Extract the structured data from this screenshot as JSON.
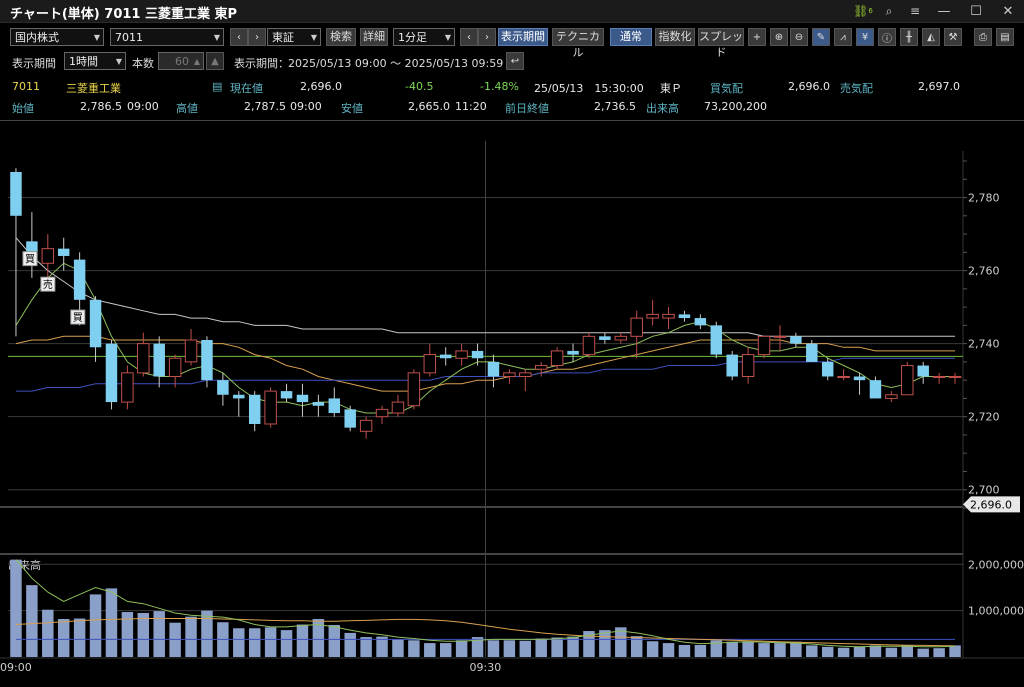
{
  "window": {
    "title": "チャート(単体) 7011 三菱重工業 東P",
    "link_badge": "6"
  },
  "toolbar": {
    "market_select": "国内株式",
    "code_input": "7011",
    "exchange_select": "東証",
    "search_label": "検索",
    "detail_label": "詳細",
    "interval_select": "1分足",
    "period_label": "表示期間",
    "technical_label": "テクニカル",
    "normal_label": "通常",
    "index_label": "指数化",
    "spread_label": "スプレッド"
  },
  "row2": {
    "period_caption": "表示期間",
    "period_select": "1時間",
    "count_caption": "本数",
    "count_value": "60",
    "range_caption": "表示期間：",
    "range_text": "2025/05/13 09:00 ～ 2025/05/13 09:59"
  },
  "quote": {
    "code": "7011",
    "name": "三菱重工業",
    "current_label": "現在値",
    "current_value": "2,696.0",
    "change": "-40.5",
    "change_pct": "-1.48%",
    "datetime": "25/05/13　15:30:00",
    "market": "東Ｐ",
    "bid_label": "買気配",
    "bid_value": "2,696.0",
    "ask_label": "売気配",
    "ask_value": "2,697.0",
    "open_label": "始値",
    "open_value": "2,786.5",
    "open_time": "09:00",
    "high_label": "高値",
    "high_value": "2,787.5",
    "high_time": "09:00",
    "low_label": "安値",
    "low_value": "2,665.0",
    "low_time": "11:20",
    "prev_close_label": "前日終値",
    "prev_close_value": "2,736.5",
    "volume_label": "出来高",
    "volume_value": "73,200,200"
  },
  "colors": {
    "up_candle": "#c0504d",
    "down_candle": "#7fd0f0",
    "ma_short": "#8fbf5a",
    "ma_mid": "#d9a050",
    "ma_long": "#c8c8c8",
    "vwap": "#4050c0",
    "prev_close_line": "#6fbf40"
  },
  "chart_data": {
    "type": "candlestick",
    "price_ylim": [
      2695,
      2790
    ],
    "price_ticks": [
      "2,780",
      "2,760",
      "2,740",
      "2,720",
      "2,700"
    ],
    "current_price_tag": "2,696.0",
    "prev_close": 2736.5,
    "volume_label": "出来高",
    "volume_ylim": [
      0,
      2200000
    ],
    "volume_ticks": [
      "2,000,000",
      "1,000,000"
    ],
    "x_ticks": [
      "09:00",
      "09:30"
    ],
    "signals": [
      "買",
      "売",
      "買"
    ],
    "candles": [
      {
        "o": 2787,
        "h": 2788,
        "l": 2742,
        "c": 2775
      },
      {
        "o": 2768,
        "h": 2776,
        "l": 2758,
        "c": 2762
      },
      {
        "o": 2762,
        "h": 2770,
        "l": 2757,
        "c": 2766
      },
      {
        "o": 2766,
        "h": 2769,
        "l": 2760,
        "c": 2764
      },
      {
        "o": 2763,
        "h": 2765,
        "l": 2745,
        "c": 2752
      },
      {
        "o": 2752,
        "h": 2753,
        "l": 2735,
        "c": 2739
      },
      {
        "o": 2740,
        "h": 2741,
        "l": 2722,
        "c": 2724
      },
      {
        "o": 2724,
        "h": 2734,
        "l": 2722,
        "c": 2732
      },
      {
        "o": 2732,
        "h": 2743,
        "l": 2731,
        "c": 2740
      },
      {
        "o": 2740,
        "h": 2742,
        "l": 2728,
        "c": 2731
      },
      {
        "o": 2731,
        "h": 2737,
        "l": 2728,
        "c": 2736
      },
      {
        "o": 2735,
        "h": 2744,
        "l": 2734,
        "c": 2741
      },
      {
        "o": 2741,
        "h": 2742,
        "l": 2728,
        "c": 2730
      },
      {
        "o": 2730,
        "h": 2732,
        "l": 2723,
        "c": 2726
      },
      {
        "o": 2726,
        "h": 2727,
        "l": 2720,
        "c": 2725
      },
      {
        "o": 2726,
        "h": 2727,
        "l": 2716,
        "c": 2718
      },
      {
        "o": 2718,
        "h": 2728,
        "l": 2717,
        "c": 2727
      },
      {
        "o": 2727,
        "h": 2729,
        "l": 2724,
        "c": 2725
      },
      {
        "o": 2726,
        "h": 2729,
        "l": 2720,
        "c": 2724
      },
      {
        "o": 2724,
        "h": 2726,
        "l": 2720,
        "c": 2723
      },
      {
        "o": 2725,
        "h": 2728,
        "l": 2720,
        "c": 2721
      },
      {
        "o": 2722,
        "h": 2723,
        "l": 2716,
        "c": 2717
      },
      {
        "o": 2716,
        "h": 2720,
        "l": 2714,
        "c": 2719
      },
      {
        "o": 2720,
        "h": 2723,
        "l": 2718,
        "c": 2722
      },
      {
        "o": 2721,
        "h": 2726,
        "l": 2720,
        "c": 2724
      },
      {
        "o": 2723,
        "h": 2733,
        "l": 2722,
        "c": 2732
      },
      {
        "o": 2732,
        "h": 2740,
        "l": 2731,
        "c": 2737
      },
      {
        "o": 2737,
        "h": 2739,
        "l": 2734,
        "c": 2736
      },
      {
        "o": 2736,
        "h": 2740,
        "l": 2734,
        "c": 2738
      },
      {
        "o": 2738,
        "h": 2740,
        "l": 2734,
        "c": 2736
      },
      {
        "o": 2735,
        "h": 2737,
        "l": 2728,
        "c": 2731
      },
      {
        "o": 2731,
        "h": 2733,
        "l": 2729,
        "c": 2732
      },
      {
        "o": 2731,
        "h": 2733,
        "l": 2727,
        "c": 2732
      },
      {
        "o": 2733,
        "h": 2735,
        "l": 2731,
        "c": 2734
      },
      {
        "o": 2734,
        "h": 2739,
        "l": 2733,
        "c": 2738
      },
      {
        "o": 2738,
        "h": 2740,
        "l": 2735,
        "c": 2737
      },
      {
        "o": 2737,
        "h": 2743,
        "l": 2736,
        "c": 2742
      },
      {
        "o": 2742,
        "h": 2743,
        "l": 2740,
        "c": 2741
      },
      {
        "o": 2741,
        "h": 2743,
        "l": 2740,
        "c": 2742
      },
      {
        "o": 2742,
        "h": 2749,
        "l": 2736,
        "c": 2747
      },
      {
        "o": 2747,
        "h": 2752,
        "l": 2745,
        "c": 2748
      },
      {
        "o": 2747,
        "h": 2750,
        "l": 2744,
        "c": 2748
      },
      {
        "o": 2748,
        "h": 2749,
        "l": 2746,
        "c": 2747
      },
      {
        "o": 2747,
        "h": 2748,
        "l": 2744,
        "c": 2745
      },
      {
        "o": 2745,
        "h": 2746,
        "l": 2736,
        "c": 2737
      },
      {
        "o": 2737,
        "h": 2738,
        "l": 2730,
        "c": 2731
      },
      {
        "o": 2731,
        "h": 2739,
        "l": 2729,
        "c": 2737
      },
      {
        "o": 2737,
        "h": 2742,
        "l": 2736,
        "c": 2742
      },
      {
        "o": 2742,
        "h": 2745,
        "l": 2738,
        "c": 2742
      },
      {
        "o": 2742,
        "h": 2743,
        "l": 2739,
        "c": 2740
      },
      {
        "o": 2740,
        "h": 2741,
        "l": 2735,
        "c": 2735
      },
      {
        "o": 2735,
        "h": 2736,
        "l": 2730,
        "c": 2731
      },
      {
        "o": 2731,
        "h": 2733,
        "l": 2730,
        "c": 2731
      },
      {
        "o": 2731,
        "h": 2732,
        "l": 2726,
        "c": 2730
      },
      {
        "o": 2730,
        "h": 2731,
        "l": 2725,
        "c": 2725
      },
      {
        "o": 2725,
        "h": 2727,
        "l": 2724,
        "c": 2726
      },
      {
        "o": 2726,
        "h": 2735,
        "l": 2726,
        "c": 2734
      },
      {
        "o": 2734,
        "h": 2735,
        "l": 2729,
        "c": 2731
      },
      {
        "o": 2731,
        "h": 2732,
        "l": 2729,
        "c": 2731
      },
      {
        "o": 2731,
        "h": 2732,
        "l": 2729,
        "c": 2731
      }
    ],
    "volumes": [
      2100000,
      1550000,
      1020000,
      820000,
      830000,
      1350000,
      1480000,
      970000,
      950000,
      990000,
      740000,
      870000,
      1000000,
      750000,
      620000,
      620000,
      640000,
      580000,
      700000,
      820000,
      690000,
      520000,
      430000,
      440000,
      380000,
      360000,
      300000,
      300000,
      360000,
      430000,
      360000,
      360000,
      350000,
      400000,
      420000,
      440000,
      560000,
      580000,
      640000,
      450000,
      340000,
      300000,
      260000,
      260000,
      360000,
      330000,
      340000,
      300000,
      300000,
      330000,
      250000,
      220000,
      200000,
      220000,
      250000,
      200000,
      250000,
      180000,
      190000,
      250000
    ],
    "ma_short": [
      2745,
      2752,
      2758,
      2762,
      2760,
      2752,
      2742,
      2735,
      2732,
      2731,
      2731,
      2733,
      2734,
      2732,
      2728,
      2725,
      2724,
      2724,
      2723,
      2724,
      2724,
      2722,
      2721,
      2721,
      2721,
      2723,
      2727,
      2730,
      2733,
      2735,
      2735,
      2734,
      2733,
      2733,
      2734,
      2735,
      2737,
      2738,
      2739,
      2740,
      2742,
      2743,
      2745,
      2746,
      2744,
      2741,
      2739,
      2738,
      2738,
      2739,
      2739,
      2736,
      2734,
      2732,
      2729,
      2728,
      2729,
      2731,
      2731,
      2731
    ],
    "ma_mid": [
      2740,
      2741,
      2741,
      2742,
      2742,
      2742,
      2741,
      2741,
      2741,
      2741,
      2741,
      2741,
      2740,
      2740,
      2739,
      2737,
      2736,
      2734,
      2733,
      2731,
      2730,
      2729,
      2728,
      2727,
      2727,
      2727,
      2728,
      2729,
      2729,
      2730,
      2730,
      2731,
      2731,
      2732,
      2733,
      2733,
      2734,
      2735,
      2736,
      2737,
      2738,
      2739,
      2740,
      2741,
      2741,
      2741,
      2741,
      2741,
      2741,
      2740,
      2740,
      2740,
      2739,
      2739,
      2738,
      2738,
      2738,
      2738,
      2738,
      2738
    ],
    "ma_long": [
      2769,
      2764,
      2760,
      2757,
      2754,
      2752,
      2751,
      2750,
      2749,
      2748,
      2748,
      2747,
      2747,
      2746,
      2746,
      2745,
      2745,
      2745,
      2744,
      2744,
      2744,
      2744,
      2744,
      2744,
      2743,
      2743,
      2743,
      2743,
      2743,
      2743,
      2743,
      2743,
      2743,
      2743,
      2743,
      2743,
      2743,
      2743,
      2743,
      2743,
      2743,
      2743,
      2743,
      2743,
      2743,
      2743,
      2743,
      2742,
      2742,
      2742,
      2742,
      2742,
      2742,
      2742,
      2742,
      2742,
      2742,
      2742,
      2742,
      2742
    ],
    "vwap": [
      2727,
      2727,
      2728,
      2728,
      2728,
      2729,
      2729,
      2729,
      2729,
      2729,
      2729,
      2729,
      2730,
      2730,
      2730,
      2730,
      2730,
      2730,
      2730,
      2730,
      2730,
      2730,
      2730,
      2730,
      2730,
      2730,
      2730,
      2731,
      2731,
      2731,
      2731,
      2731,
      2731,
      2732,
      2732,
      2732,
      2732,
      2733,
      2733,
      2733,
      2733,
      2734,
      2734,
      2734,
      2734,
      2735,
      2735,
      2735,
      2735,
      2735,
      2735,
      2735,
      2736,
      2736,
      2736,
      2736,
      2736,
      2736,
      2736,
      2736
    ],
    "vol_ma_short": [
      2100000,
      1700000,
      1400000,
      1200000,
      1350000,
      1500000,
      1400000,
      1200000,
      1150000,
      1050000,
      950000,
      900000,
      880000,
      860000,
      800000,
      700000,
      650000,
      650000,
      680000,
      700000,
      650000,
      580000,
      520000,
      480000,
      430000,
      400000,
      360000,
      340000,
      340000,
      360000,
      380000,
      380000,
      380000,
      380000,
      390000,
      420000,
      470000,
      520000,
      560000,
      520000,
      460000,
      380000,
      320000,
      290000,
      300000,
      320000,
      330000,
      320000,
      310000,
      300000,
      280000,
      250000,
      230000,
      220000,
      230000,
      230000,
      230000,
      220000,
      220000,
      230000
    ],
    "vol_ma_mid": [
      700000,
      720000,
      740000,
      760000,
      780000,
      800000,
      810000,
      820000,
      830000,
      830000,
      830000,
      830000,
      830000,
      820000,
      810000,
      800000,
      790000,
      780000,
      780000,
      770000,
      770000,
      780000,
      790000,
      800000,
      810000,
      810000,
      800000,
      780000,
      750000,
      700000,
      650000,
      600000,
      560000,
      520000,
      490000,
      470000,
      450000,
      440000,
      430000,
      420000,
      410000,
      400000,
      390000,
      380000,
      370000,
      360000,
      350000,
      340000,
      330000,
      320000,
      310000,
      300000,
      290000,
      280000,
      270000,
      260000,
      255000,
      250000,
      245000,
      240000
    ],
    "vol_avg": [
      380000,
      380000,
      380000,
      380000,
      380000,
      380000,
      380000,
      380000,
      380000,
      380000,
      380000,
      380000,
      380000,
      380000,
      380000,
      380000,
      380000,
      380000,
      380000,
      380000,
      380000,
      380000,
      380000,
      380000,
      380000,
      380000,
      380000,
      380000,
      380000,
      380000,
      380000,
      380000,
      380000,
      380000,
      380000,
      380000,
      380000,
      380000,
      380000,
      380000,
      380000,
      380000,
      380000,
      380000,
      380000,
      380000,
      380000,
      380000,
      380000,
      380000,
      380000,
      380000,
      380000,
      380000,
      380000,
      380000,
      380000,
      380000,
      380000,
      380000
    ]
  }
}
